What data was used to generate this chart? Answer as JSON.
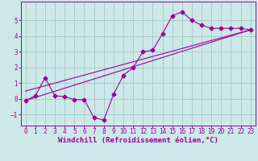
{
  "background_color": "#cce8e8",
  "grid_color": "#aacccc",
  "line_color": "#990099",
  "xlabel": "Windchill (Refroidissement éolien,°C)",
  "xlim": [
    -0.5,
    23.5
  ],
  "ylim": [
    -1.7,
    6.2
  ],
  "xticks": [
    0,
    1,
    2,
    3,
    4,
    5,
    6,
    7,
    8,
    9,
    10,
    11,
    12,
    13,
    14,
    15,
    16,
    17,
    18,
    19,
    20,
    21,
    22,
    23
  ],
  "yticks": [
    -1,
    0,
    1,
    2,
    3,
    4,
    5
  ],
  "line1_x": [
    0,
    1,
    2,
    3,
    4,
    5,
    6,
    7,
    8,
    9,
    10,
    11,
    12,
    13,
    14,
    15,
    16,
    17,
    18,
    19,
    20,
    21,
    22,
    23
  ],
  "line1_y": [
    -0.1,
    0.2,
    1.35,
    0.2,
    0.15,
    -0.05,
    -0.05,
    -1.2,
    -1.35,
    0.3,
    1.5,
    2.0,
    3.0,
    3.1,
    4.15,
    5.3,
    5.55,
    5.0,
    4.7,
    4.5,
    4.5,
    4.5,
    4.5,
    4.4
  ],
  "line2_x": [
    0,
    23
  ],
  "line2_y": [
    -0.1,
    4.4
  ],
  "line3_x": [
    0,
    23
  ],
  "line3_y": [
    0.5,
    4.4
  ],
  "marker": "D",
  "marker_size": 2.5,
  "tick_font_size": 5.5,
  "label_font_size": 6.5
}
